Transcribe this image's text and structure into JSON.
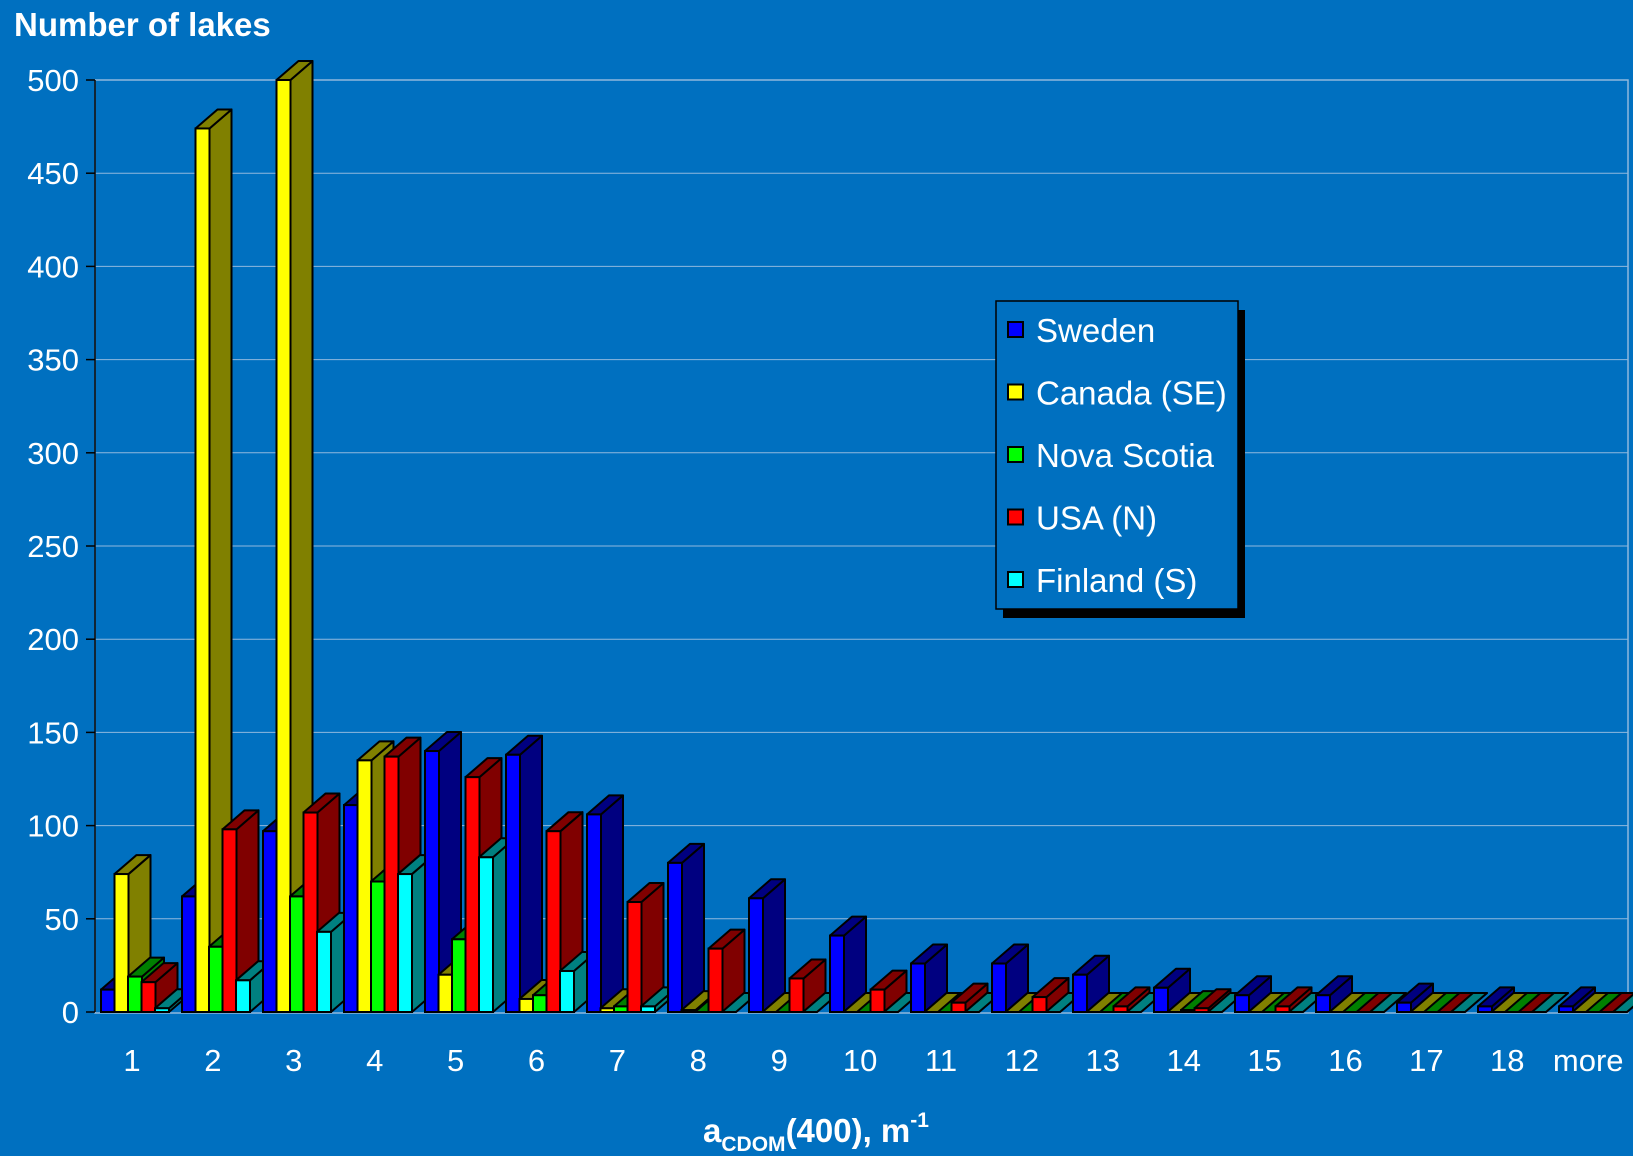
{
  "chart_data": {
    "type": "bar",
    "ylabel": "Number of lakes",
    "xlabel": {
      "main": "a",
      "sub": "CDOM",
      "rest": "(400), m",
      "sup": "-1"
    },
    "ylim": [
      0,
      500
    ],
    "yticks": [
      "0",
      "50",
      "100",
      "150",
      "200",
      "250",
      "300",
      "350",
      "400",
      "450",
      "500"
    ],
    "categories": [
      "1",
      "2",
      "3",
      "4",
      "5",
      "6",
      "7",
      "8",
      "9",
      "10",
      "11",
      "12",
      "13",
      "14",
      "15",
      "16",
      "17",
      "18",
      "more"
    ],
    "legend_position": "right-middle",
    "series": [
      {
        "name": "Sweden",
        "color": "#0000FF",
        "side": "#000080",
        "values": [
          12,
          62,
          97,
          111,
          140,
          138,
          106,
          80,
          61,
          41,
          26,
          26,
          20,
          13,
          9,
          9,
          5,
          3,
          3
        ]
      },
      {
        "name": "Canada (SE)",
        "color": "#FFFF00",
        "side": "#808000",
        "values": [
          74,
          474,
          500,
          135,
          20,
          7,
          2,
          1,
          0,
          0,
          0,
          0,
          0,
          0,
          0,
          0,
          0,
          0,
          0
        ]
      },
      {
        "name": "Nova Scotia",
        "color": "#00FF00",
        "side": "#008000",
        "values": [
          19,
          35,
          62,
          70,
          39,
          9,
          3,
          0,
          0,
          0,
          0,
          0,
          0,
          1,
          0,
          0,
          0,
          0,
          0
        ]
      },
      {
        "name": "USA (N)",
        "color": "#FF0000",
        "side": "#800000",
        "values": [
          16,
          98,
          107,
          137,
          126,
          97,
          59,
          34,
          18,
          12,
          5,
          8,
          3,
          2,
          3,
          0,
          0,
          0,
          0
        ]
      },
      {
        "name": "Finland (S)",
        "color": "#00FFFF",
        "side": "#008080",
        "values": [
          2,
          17,
          43,
          74,
          83,
          22,
          3,
          0,
          0,
          0,
          0,
          0,
          0,
          0,
          0,
          0,
          0,
          0,
          0
        ]
      }
    ]
  }
}
